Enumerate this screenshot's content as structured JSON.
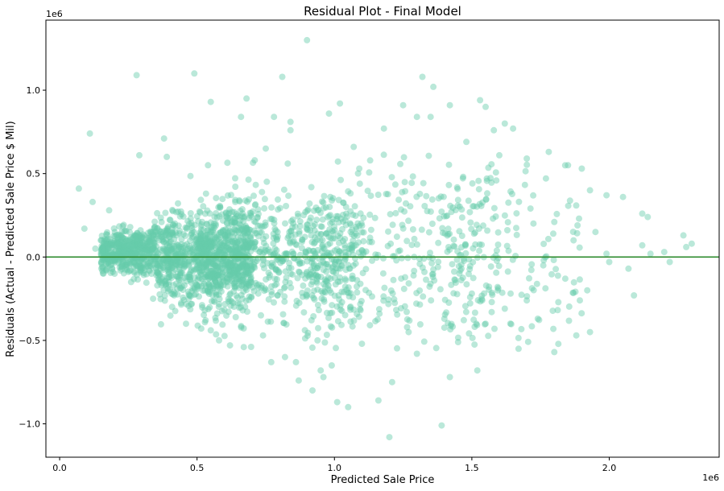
{
  "chart_data": {
    "type": "scatter",
    "title": "Residual Plot - Final Model",
    "xlabel": "Predicted Sale Price",
    "ylabel": "Residuals (Actual - Predicted Sale Price $ Mil)",
    "x_offset_label": "1e6",
    "y_offset_label": "1e6",
    "xlim": [
      -0.05,
      2.4
    ],
    "ylim": [
      -1.2,
      1.42
    ],
    "xticks": [
      0.0,
      0.5,
      1.0,
      1.5,
      2.0
    ],
    "xtick_labels": [
      "0.0",
      "0.5",
      "1.0",
      "1.5",
      "2.0"
    ],
    "yticks": [
      -1.0,
      -0.5,
      0.0,
      0.5,
      1.0
    ],
    "ytick_labels": [
      "−1.0",
      "−0.5",
      "0.0",
      "0.5",
      "1.0"
    ],
    "grid": false,
    "point_color": "#66cdaa",
    "point_opacity": 0.45,
    "reference_line": {
      "y": 0,
      "color": "#2e8b2e"
    },
    "point_units": "x: predicted sale price (1e6 $); y: residual (1e6 $)",
    "points": [
      [
        0.9,
        1.3
      ],
      [
        0.28,
        1.09
      ],
      [
        0.49,
        1.1
      ],
      [
        0.81,
        1.08
      ],
      [
        1.32,
        1.08
      ],
      [
        0.68,
        0.95
      ],
      [
        0.55,
        0.93
      ],
      [
        1.02,
        0.92
      ],
      [
        1.53,
        0.94
      ],
      [
        1.55,
        0.9
      ],
      [
        1.36,
        1.02
      ],
      [
        0.78,
        0.84
      ],
      [
        0.84,
        0.81
      ],
      [
        0.84,
        0.76
      ],
      [
        0.66,
        0.84
      ],
      [
        0.98,
        0.86
      ],
      [
        1.3,
        0.84
      ],
      [
        1.35,
        0.84
      ],
      [
        1.42,
        0.91
      ],
      [
        1.58,
        0.76
      ],
      [
        1.62,
        0.8
      ],
      [
        1.65,
        0.77
      ],
      [
        0.11,
        0.74
      ],
      [
        0.38,
        0.71
      ],
      [
        1.07,
        0.66
      ],
      [
        1.18,
        0.77
      ],
      [
        1.25,
        0.91
      ],
      [
        0.75,
        0.65
      ],
      [
        1.78,
        0.63
      ],
      [
        1.85,
        0.55
      ],
      [
        1.9,
        0.53
      ],
      [
        1.6,
        0.61
      ],
      [
        0.07,
        0.41
      ],
      [
        0.29,
        0.61
      ],
      [
        0.39,
        0.6
      ],
      [
        0.54,
        0.55
      ],
      [
        0.71,
        0.58
      ],
      [
        0.83,
        0.56
      ],
      [
        1.48,
        0.69
      ],
      [
        1.7,
        0.59
      ],
      [
        1.93,
        0.4
      ],
      [
        1.99,
        0.37
      ],
      [
        2.05,
        0.36
      ],
      [
        2.12,
        0.26
      ],
      [
        2.14,
        0.24
      ],
      [
        2.12,
        0.07
      ],
      [
        2.2,
        0.03
      ],
      [
        2.27,
        0.13
      ],
      [
        2.3,
        0.08
      ],
      [
        2.28,
        0.06
      ],
      [
        1.99,
        0.02
      ],
      [
        2.0,
        -0.03
      ],
      [
        2.15,
        0.02
      ],
      [
        2.22,
        -0.03
      ],
      [
        2.07,
        -0.07
      ],
      [
        2.09,
        -0.23
      ],
      [
        1.89,
        0.23
      ],
      [
        1.8,
        0.21
      ],
      [
        1.95,
        0.15
      ],
      [
        1.87,
        0.1
      ],
      [
        1.76,
        -0.05
      ],
      [
        1.84,
        -0.13
      ],
      [
        1.92,
        -0.2
      ],
      [
        1.8,
        -0.57
      ],
      [
        1.67,
        -0.55
      ],
      [
        1.93,
        -0.45
      ],
      [
        1.88,
        -0.47
      ],
      [
        1.52,
        -0.68
      ],
      [
        1.42,
        -0.72
      ],
      [
        1.39,
        -1.01
      ],
      [
        1.2,
        -1.08
      ],
      [
        1.21,
        -0.75
      ],
      [
        1.16,
        -0.86
      ],
      [
        1.05,
        -0.9
      ],
      [
        1.01,
        -0.87
      ],
      [
        0.92,
        -0.8
      ],
      [
        0.96,
        -0.72
      ],
      [
        0.99,
        -0.65
      ],
      [
        0.87,
        -0.74
      ],
      [
        0.95,
        -0.68
      ],
      [
        0.77,
        -0.63
      ],
      [
        0.86,
        -0.63
      ],
      [
        0.82,
        -0.6
      ],
      [
        0.58,
        -0.5
      ],
      [
        0.62,
        -0.53
      ],
      [
        0.67,
        -0.54
      ],
      [
        0.74,
        -0.47
      ],
      [
        0.46,
        -0.4
      ],
      [
        0.34,
        -0.25
      ],
      [
        0.26,
        -0.15
      ],
      [
        0.2,
        -0.1
      ],
      [
        0.15,
        0.1
      ],
      [
        0.18,
        0.28
      ],
      [
        0.12,
        0.33
      ],
      [
        0.09,
        0.17
      ],
      [
        0.13,
        0.05
      ],
      [
        1.3,
        -0.58
      ],
      [
        1.27,
        -0.45
      ],
      [
        1.1,
        -0.52
      ],
      [
        1.45,
        -0.51
      ],
      [
        1.62,
        -0.31
      ],
      [
        1.7,
        -0.26
      ],
      [
        1.74,
        -0.37
      ],
      [
        1.55,
        -0.4
      ],
      [
        1.4,
        -0.37
      ]
    ]
  }
}
